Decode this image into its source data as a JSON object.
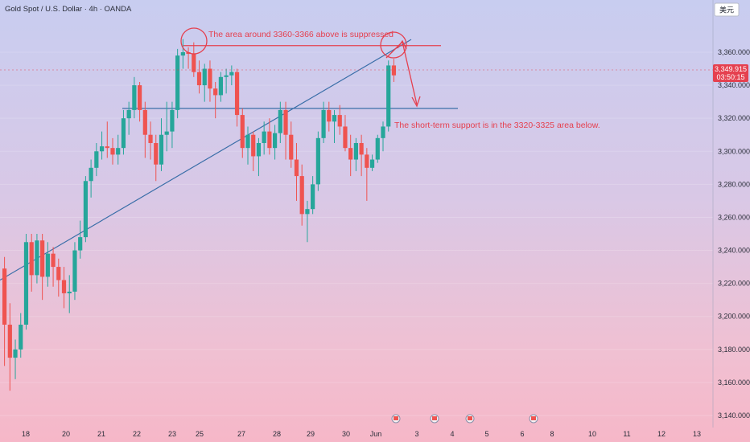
{
  "symbol_title": "Gold Spot / U.S. Dollar · 4h · OANDA",
  "currency_button": "美元",
  "price": {
    "value": "3,349.915",
    "countdown": "03:50:15"
  },
  "colors": {
    "up": "#26a69a",
    "down": "#ef5350",
    "annotation": "#e5404f",
    "trend": "#3a6ea8",
    "support": "#3a6ea8"
  },
  "annotations": {
    "resistance_note": "The area around 3360-3366 above is suppressed",
    "support_note": "The short-term support is in the 3320-3325 area below."
  },
  "chart_data": {
    "type": "candlestick",
    "y_axis": {
      "range": [
        3135,
        3385
      ],
      "side": "right",
      "ticks": [
        "3,360.000",
        "3,340.000",
        "3,320.000",
        "3,300.000",
        "3,280.000",
        "3,260.000",
        "3,240.000",
        "3,220.000",
        "3,200.000",
        "3,180.000",
        "3,160.000",
        "3,140.000"
      ]
    },
    "x_axis": {
      "ticks": [
        "18",
        "20",
        "21",
        "22",
        "23",
        "25",
        "27",
        "28",
        "29",
        "30",
        "Jun",
        "3",
        "4",
        "5",
        "6",
        "8",
        "10",
        "11",
        "12",
        "13"
      ]
    },
    "candles": [
      [
        3229,
        3236,
        3170,
        3195
      ],
      [
        3195,
        3208,
        3155,
        3175
      ],
      [
        3175,
        3186,
        3162,
        3180
      ],
      [
        3180,
        3202,
        3175,
        3195
      ],
      [
        3195,
        3250,
        3192,
        3245
      ],
      [
        3245,
        3250,
        3215,
        3225
      ],
      [
        3225,
        3250,
        3220,
        3246
      ],
      [
        3246,
        3250,
        3210,
        3224
      ],
      [
        3224,
        3245,
        3218,
        3238
      ],
      [
        3238,
        3242,
        3218,
        3230
      ],
      [
        3230,
        3235,
        3212,
        3222
      ],
      [
        3222,
        3230,
        3205,
        3214
      ],
      [
        3214,
        3225,
        3202,
        3215
      ],
      [
        3215,
        3245,
        3210,
        3240
      ],
      [
        3240,
        3258,
        3235,
        3248
      ],
      [
        3248,
        3285,
        3245,
        3282
      ],
      [
        3282,
        3295,
        3272,
        3290
      ],
      [
        3290,
        3305,
        3285,
        3300
      ],
      [
        3300,
        3312,
        3295,
        3303
      ],
      [
        3303,
        3318,
        3296,
        3302
      ],
      [
        3302,
        3308,
        3292,
        3298
      ],
      [
        3298,
        3310,
        3292,
        3302
      ],
      [
        3302,
        3325,
        3298,
        3320
      ],
      [
        3320,
        3330,
        3310,
        3325
      ],
      [
        3325,
        3345,
        3320,
        3340
      ],
      [
        3340,
        3342,
        3318,
        3325
      ],
      [
        3325,
        3330,
        3296,
        3310
      ],
      [
        3310,
        3318,
        3295,
        3305
      ],
      [
        3305,
        3310,
        3282,
        3292
      ],
      [
        3292,
        3320,
        3288,
        3310
      ],
      [
        3310,
        3330,
        3300,
        3312
      ],
      [
        3312,
        3330,
        3302,
        3325
      ],
      [
        3325,
        3362,
        3320,
        3358
      ],
      [
        3358,
        3368,
        3350,
        3360
      ],
      [
        3360,
        3363,
        3350,
        3359
      ],
      [
        3359,
        3366,
        3345,
        3348
      ],
      [
        3348,
        3355,
        3335,
        3340
      ],
      [
        3340,
        3353,
        3330,
        3350
      ],
      [
        3350,
        3355,
        3330,
        3338
      ],
      [
        3338,
        3342,
        3320,
        3334
      ],
      [
        3334,
        3348,
        3330,
        3345
      ],
      [
        3345,
        3350,
        3335,
        3346
      ],
      [
        3346,
        3352,
        3340,
        3348
      ],
      [
        3348,
        3350,
        3315,
        3322
      ],
      [
        3322,
        3326,
        3296,
        3302
      ],
      [
        3302,
        3315,
        3292,
        3310
      ],
      [
        3310,
        3312,
        3288,
        3297
      ],
      [
        3297,
        3308,
        3285,
        3305
      ],
      [
        3305,
        3318,
        3298,
        3312
      ],
      [
        3312,
        3320,
        3298,
        3302
      ],
      [
        3302,
        3316,
        3295,
        3311
      ],
      [
        3311,
        3330,
        3305,
        3325
      ],
      [
        3325,
        3330,
        3295,
        3310
      ],
      [
        3310,
        3318,
        3290,
        3295
      ],
      [
        3295,
        3305,
        3270,
        3285
      ],
      [
        3285,
        3292,
        3255,
        3262
      ],
      [
        3262,
        3270,
        3245,
        3265
      ],
      [
        3265,
        3285,
        3262,
        3280
      ],
      [
        3280,
        3312,
        3276,
        3308
      ],
      [
        3308,
        3330,
        3305,
        3325
      ],
      [
        3325,
        3330,
        3312,
        3318
      ],
      [
        3318,
        3325,
        3305,
        3322
      ],
      [
        3322,
        3328,
        3310,
        3315
      ],
      [
        3315,
        3322,
        3300,
        3302
      ],
      [
        3302,
        3310,
        3285,
        3295
      ],
      [
        3295,
        3308,
        3288,
        3305
      ],
      [
        3305,
        3310,
        3285,
        3298
      ],
      [
        3298,
        3302,
        3270,
        3290
      ],
      [
        3290,
        3298,
        3288,
        3295
      ],
      [
        3295,
        3310,
        3293,
        3308
      ],
      [
        3308,
        3318,
        3300,
        3315
      ],
      [
        3315,
        3355,
        3312,
        3352
      ],
      [
        3352,
        3356,
        3342,
        3346
      ]
    ],
    "trendline": [
      [
        0,
        3222
      ],
      [
        70,
        3358
      ]
    ],
    "support_level": 3326,
    "resistance_level": 3364
  }
}
